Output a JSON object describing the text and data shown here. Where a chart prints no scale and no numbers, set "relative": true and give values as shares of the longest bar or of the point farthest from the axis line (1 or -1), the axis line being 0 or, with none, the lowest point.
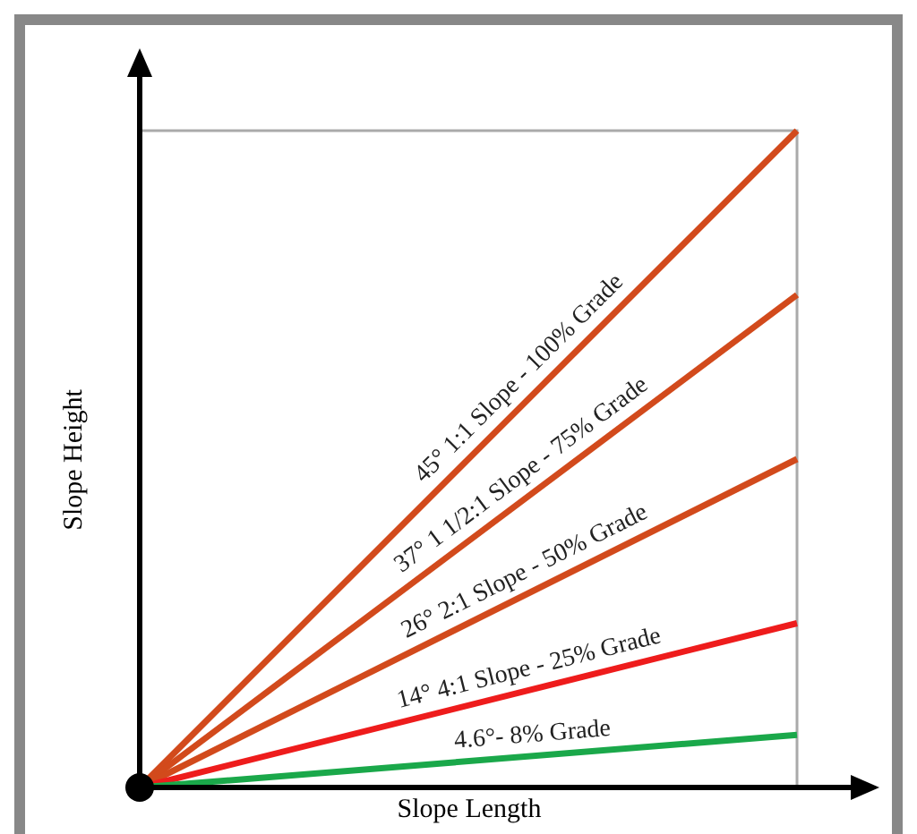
{
  "chart_data": {
    "type": "line",
    "relative": true,
    "xlabel": "Slope Length",
    "ylabel": "Slope Height",
    "categories": [
      null,
      null
    ],
    "series": [
      {
        "name": "45° 1:1 Slope - 100% Grade",
        "color": "#d24a1c",
        "values": [
          0,
          1
        ]
      },
      {
        "name": "37° 1 1/2:1 Slope - 75% Grade",
        "color": "#d24a1c",
        "values": [
          0,
          0.75
        ]
      },
      {
        "name": "26° 2:1 Slope - 50% Grade",
        "color": "#d24a1c",
        "values": [
          0,
          0.5
        ]
      },
      {
        "name": "14° 4:1 Slope - 25% Grade",
        "color": "#ee1c1c",
        "values": [
          0,
          0.25
        ]
      },
      {
        "name": "4.6°- 8% Grade",
        "color": "#1aa84a",
        "values": [
          0,
          0.08
        ]
      }
    ]
  }
}
